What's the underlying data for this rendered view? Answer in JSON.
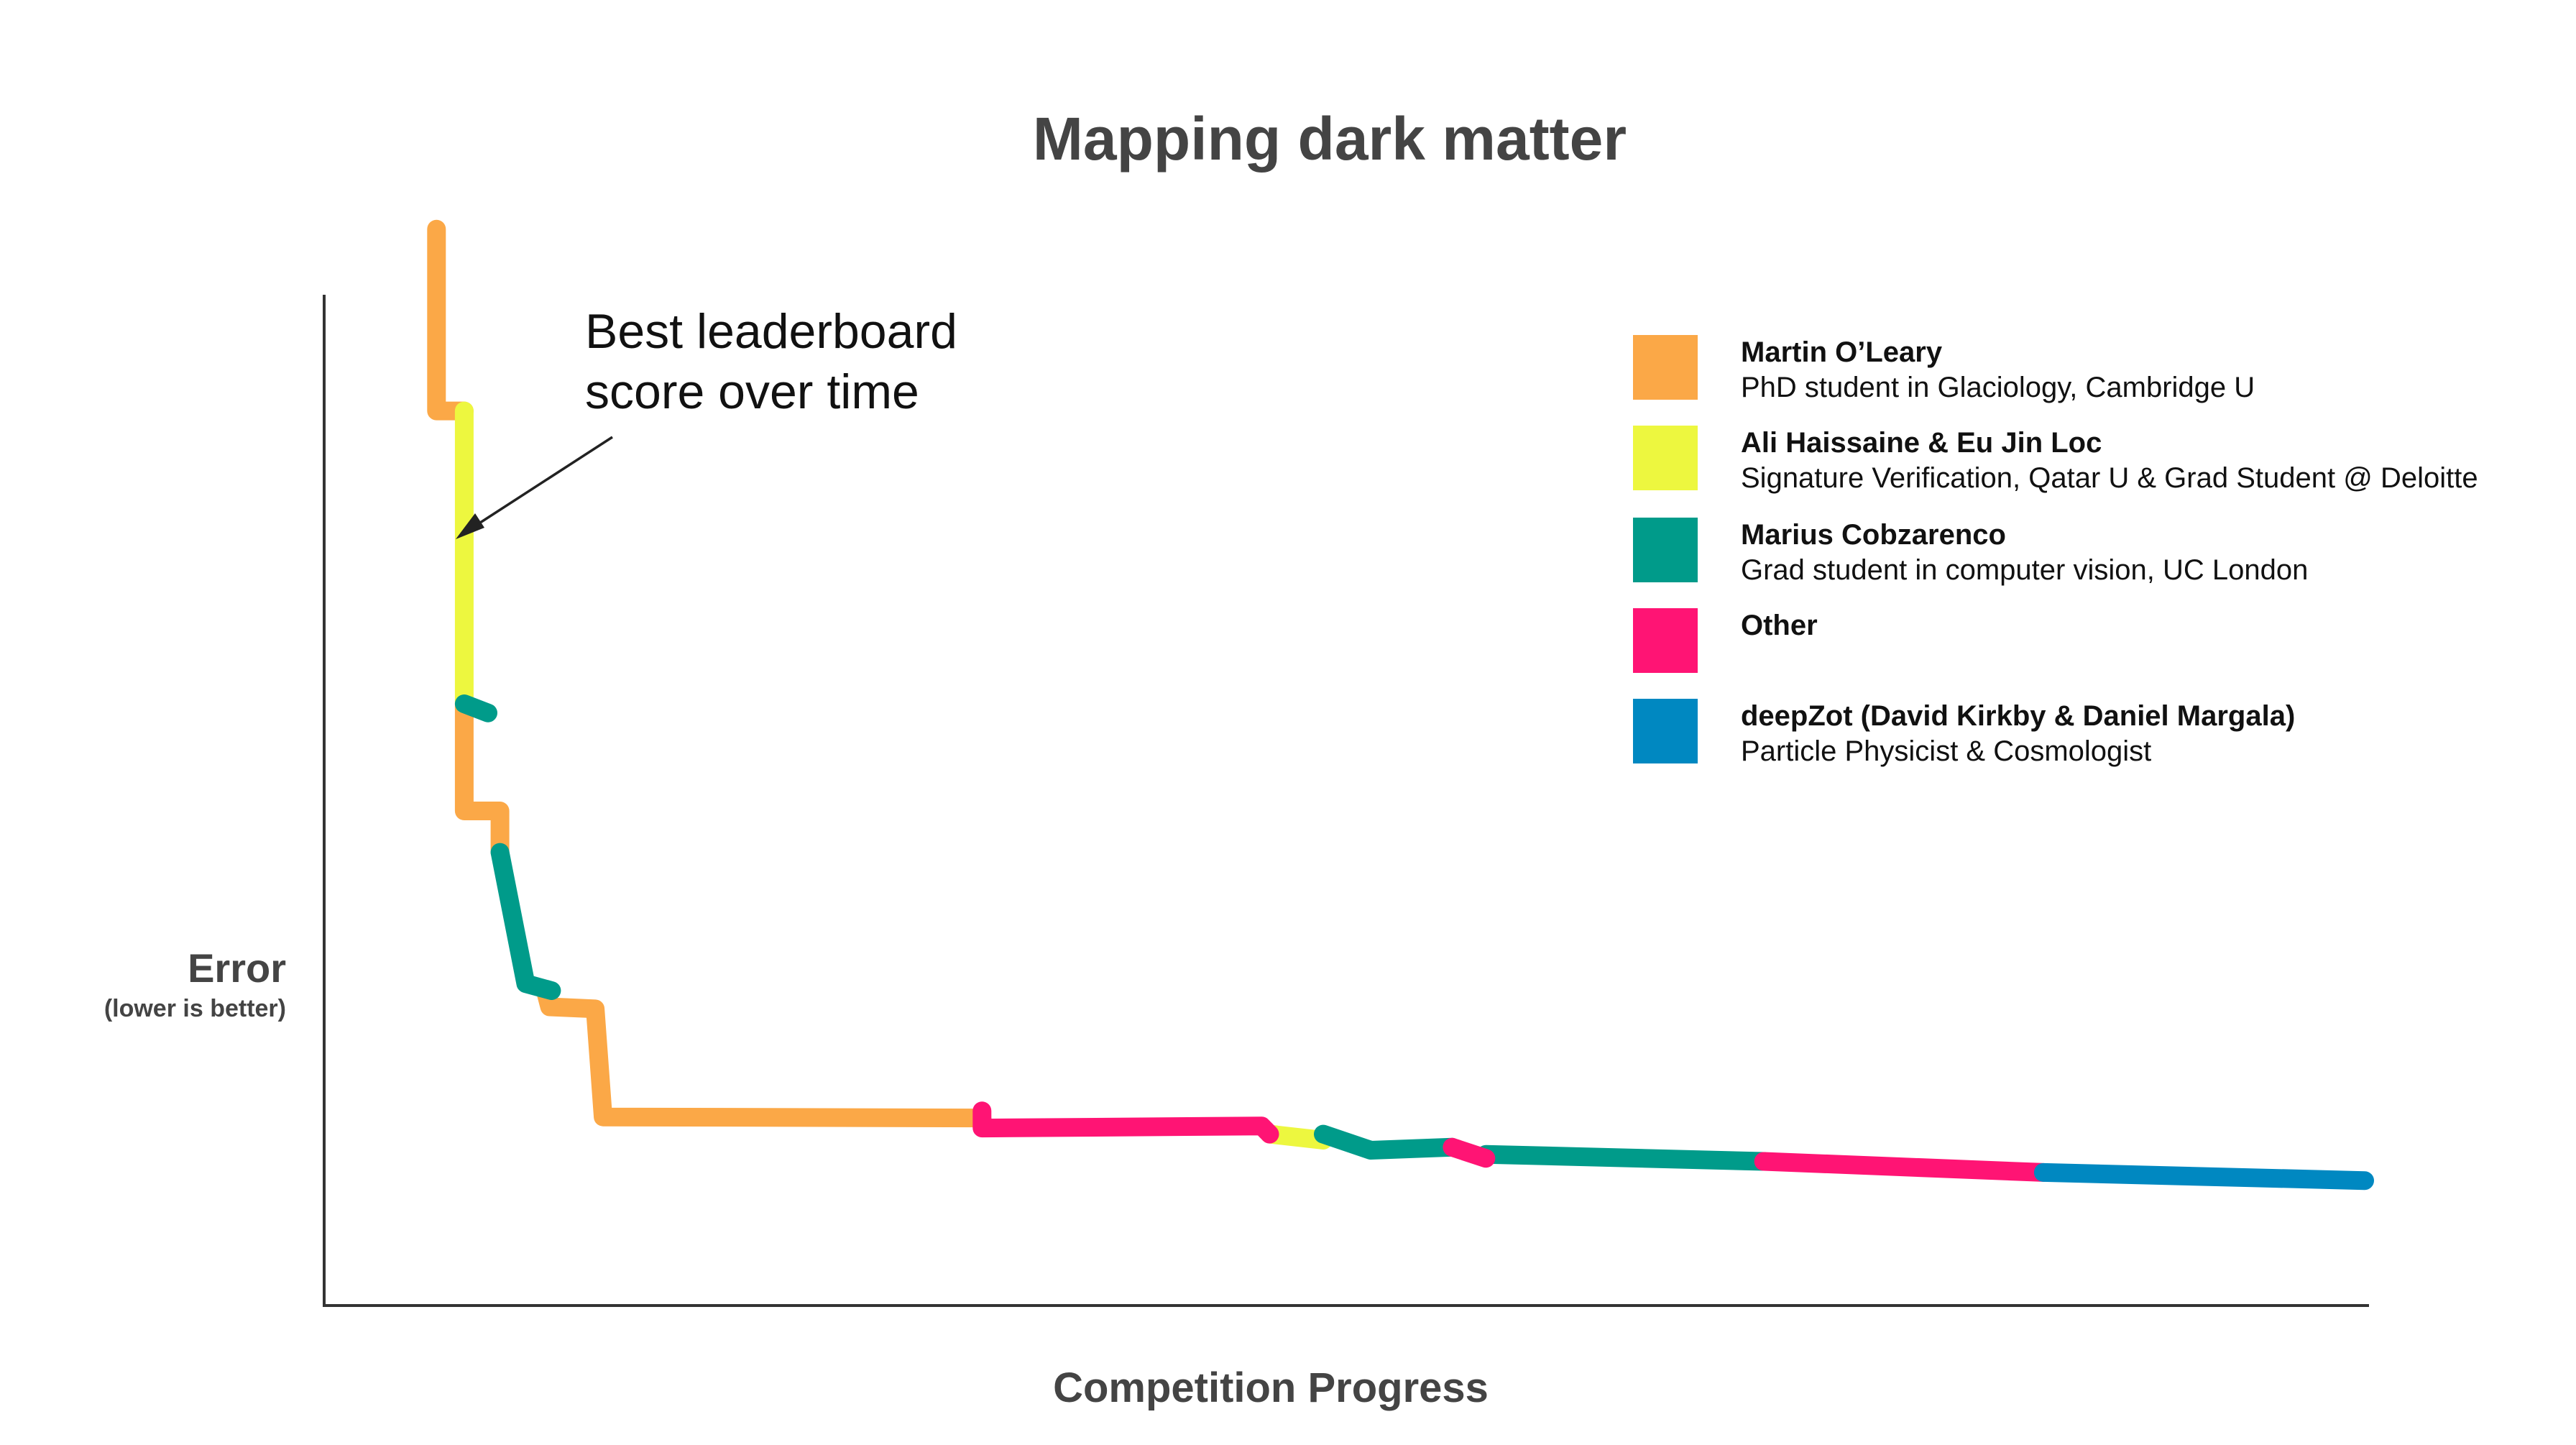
{
  "chart_data": {
    "type": "line",
    "title": "Mapping dark matter",
    "xlabel": "Competition Progress",
    "ylabel": "Error",
    "ylabel_sub": "(lower is better)",
    "annotation": [
      "Best leaderboard",
      "score over time"
    ],
    "xlim": [
      0,
      100
    ],
    "ylim": [
      0,
      100
    ],
    "axes_ticks": false,
    "grid": false,
    "legend_position": "top-right",
    "series": [
      {
        "name": "Martin O’Leary",
        "description": "PhD student in Glaciology, Cambridge U",
        "color": "#FBA847",
        "segments": [
          [
            [
              2.8,
              106.5
            ],
            [
              2.8,
              88.5
            ],
            [
              4.2,
              88.5
            ]
          ],
          [
            [
              4.2,
              59.5
            ],
            [
              4.2,
              48.9
            ],
            [
              6.0,
              48.9
            ],
            [
              6.0,
              44.8
            ]
          ],
          [
            [
              8.3,
              31.0
            ],
            [
              8.5,
              29.5
            ],
            [
              10.8,
              29.3
            ],
            [
              11.2,
              18.6
            ],
            [
              30.3,
              18.5
            ]
          ]
        ]
      },
      {
        "name": "Ali Haissaine & Eu Jin Loc",
        "description": "Signature Verification, Qatar U & Grad Student @ Deloitte",
        "color": "#EDF73F",
        "segments": [
          [
            [
              4.2,
              88.5
            ],
            [
              4.2,
              59.5
            ]
          ],
          [
            [
              44.8,
              16.9
            ],
            [
              47.5,
              16.3
            ]
          ]
        ]
      },
      {
        "name": "Marius Cobzarenco",
        "description": "Grad student in computer vision, UC London",
        "color": "#009B8A",
        "segments": [
          [
            [
              4.2,
              59.5
            ],
            [
              5.4,
              58.6
            ]
          ],
          [
            [
              6.0,
              44.8
            ],
            [
              7.3,
              31.8
            ],
            [
              8.6,
              31.1
            ]
          ],
          [
            [
              47.5,
              16.9
            ],
            [
              49.9,
              15.3
            ],
            [
              54.0,
              15.6
            ]
          ],
          [
            [
              55.7,
              14.9
            ],
            [
              69.7,
              14.2
            ]
          ]
        ]
      },
      {
        "name": "Other",
        "description": "",
        "color": "#FF1474",
        "segments": [
          [
            [
              30.3,
              19.2
            ],
            [
              30.3,
              17.5
            ],
            [
              44.4,
              17.7
            ],
            [
              44.8,
              16.9
            ]
          ],
          [
            [
              54.0,
              15.6
            ],
            [
              55.7,
              14.5
            ]
          ],
          [
            [
              69.7,
              14.2
            ],
            [
              83.8,
              13.1
            ]
          ]
        ]
      },
      {
        "name": "deepZot (David Kirkby & Daniel Margala)",
        "description": "Particle Physicist & Cosmologist",
        "color": "#0088C1",
        "segments": [
          [
            [
              83.8,
              13.1
            ],
            [
              100.0,
              12.3
            ]
          ]
        ]
      }
    ]
  }
}
